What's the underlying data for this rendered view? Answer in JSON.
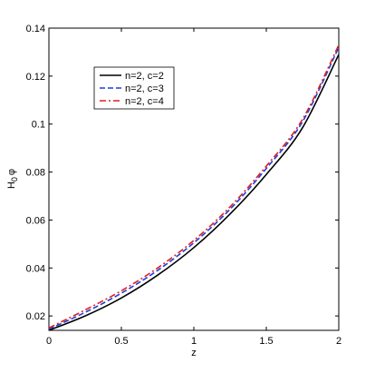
{
  "chart_data": {
    "type": "line",
    "xlabel": "z",
    "ylabel": "H",
    "ylabel_sub": "0",
    "ylabel_suffix": "φ",
    "xlim": [
      0,
      2
    ],
    "ylim": [
      0.014,
      0.14
    ],
    "xticks": [
      0,
      0.5,
      1,
      1.5,
      2
    ],
    "xtick_labels": [
      "0",
      "0.5",
      "1",
      "1.5",
      "2"
    ],
    "yticks": [
      0.02,
      0.04,
      0.06,
      0.08,
      0.1,
      0.12,
      0.14
    ],
    "ytick_labels": [
      "0.02",
      "0.04",
      "0.06",
      "0.08",
      "0.1",
      "0.12",
      "0.14"
    ],
    "grid": false,
    "legend_position": "top-left",
    "x": [
      0,
      0.25,
      0.5,
      0.75,
      1,
      1.25,
      1.5,
      1.75,
      2
    ],
    "series": [
      {
        "name": "n=2, c=2",
        "color": "#000000",
        "dash": "solid",
        "values": [
          0.014,
          0.02,
          0.0275,
          0.037,
          0.0485,
          0.0625,
          0.079,
          0.0985,
          0.129
        ]
      },
      {
        "name": "n=2, c=3",
        "color": "#1f3de0",
        "dash": "dashed",
        "values": [
          0.0145,
          0.0215,
          0.0295,
          0.039,
          0.0505,
          0.0645,
          0.0815,
          0.101,
          0.132
        ]
      },
      {
        "name": "n=2, c=4",
        "color": "#e01f1f",
        "dash": "dashdot",
        "values": [
          0.015,
          0.0225,
          0.0305,
          0.04,
          0.0515,
          0.0655,
          0.0825,
          0.102,
          0.133
        ]
      }
    ]
  }
}
